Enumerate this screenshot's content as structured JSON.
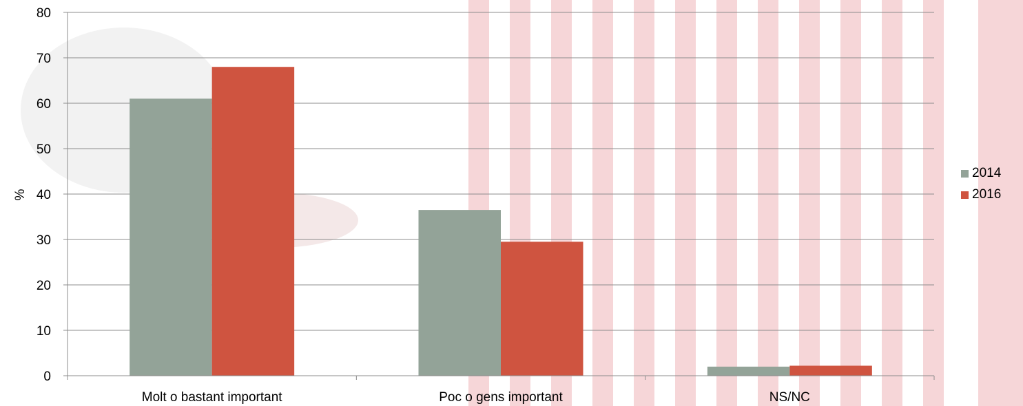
{
  "chart_data": {
    "type": "bar",
    "categories": [
      "Molt o bastant important",
      "Poc o gens important",
      "NS/NC"
    ],
    "series": [
      {
        "name": "2014",
        "values": [
          61.0,
          36.5,
          2.0
        ],
        "color": "#93a398"
      },
      {
        "name": "2016",
        "values": [
          68.0,
          29.5,
          2.2
        ],
        "color": "#cf5440"
      }
    ],
    "ylabel": "%",
    "xlabel": "",
    "ylim": [
      0,
      80
    ],
    "yticks": [
      "0",
      "10",
      "20",
      "30",
      "40",
      "50",
      "60",
      "70",
      "80"
    ],
    "grid": true,
    "legend_position": "right"
  }
}
